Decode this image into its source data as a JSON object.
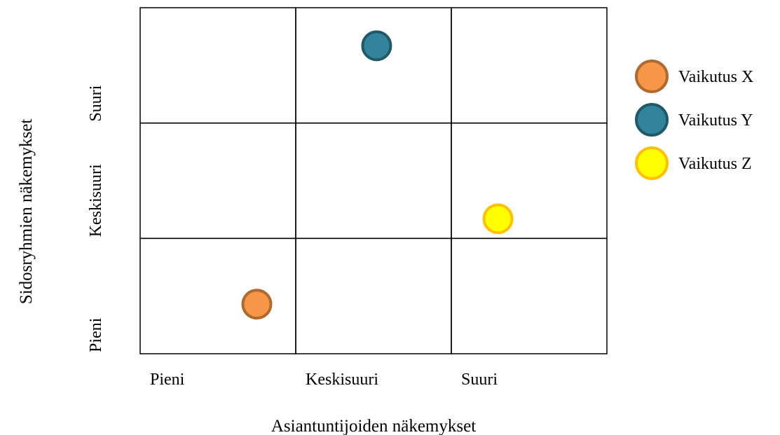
{
  "chart_data": {
    "type": "scatter",
    "title": "",
    "xlabel": "Asiantuntijoiden näkemykset",
    "ylabel": "Sidosryhmien näkemykset",
    "x_categories": [
      "Pieni",
      "Keskisuuri",
      "Suuri"
    ],
    "y_categories": [
      "Pieni",
      "Keskisuuri",
      "Suuri"
    ],
    "xlim": [
      0,
      3
    ],
    "ylim": [
      0,
      3
    ],
    "grid": true,
    "legend_position": "right",
    "series": [
      {
        "name": "Vaikutus X",
        "x": 0.75,
        "y": 0.43,
        "color": "#F79646",
        "stroke": "#B06A2F"
      },
      {
        "name": "Vaikutus Y",
        "x": 1.52,
        "y": 2.67,
        "color": "#31849B",
        "stroke": "#215968"
      },
      {
        "name": "Vaikutus Z",
        "x": 2.3,
        "y": 1.17,
        "color": "#FFFF00",
        "stroke": "#FFC000"
      }
    ]
  }
}
